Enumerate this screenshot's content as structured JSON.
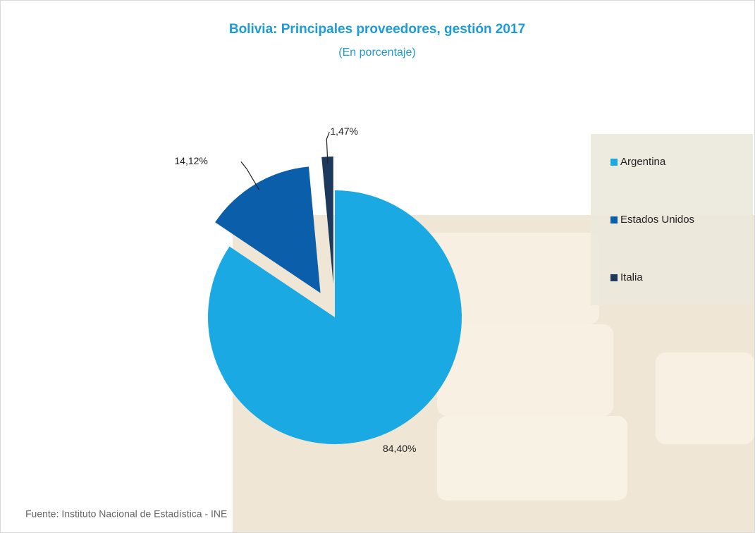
{
  "chart_data": {
    "type": "pie",
    "title": "Bolivia: Principales proveedores, gestión 2017",
    "subtitle": "(En porcentaje)",
    "categories": [
      "Argentina",
      "Estados Unidos",
      "Italia"
    ],
    "values": [
      84.4,
      14.12,
      1.47
    ],
    "value_labels": [
      "84,40%",
      "14,12%",
      "1,47%"
    ],
    "colors": [
      "#1ba9e3",
      "#0b5ea9",
      "#1d3a5e"
    ],
    "source": "Fuente: Instituto Nacional de Estadística - INE"
  }
}
